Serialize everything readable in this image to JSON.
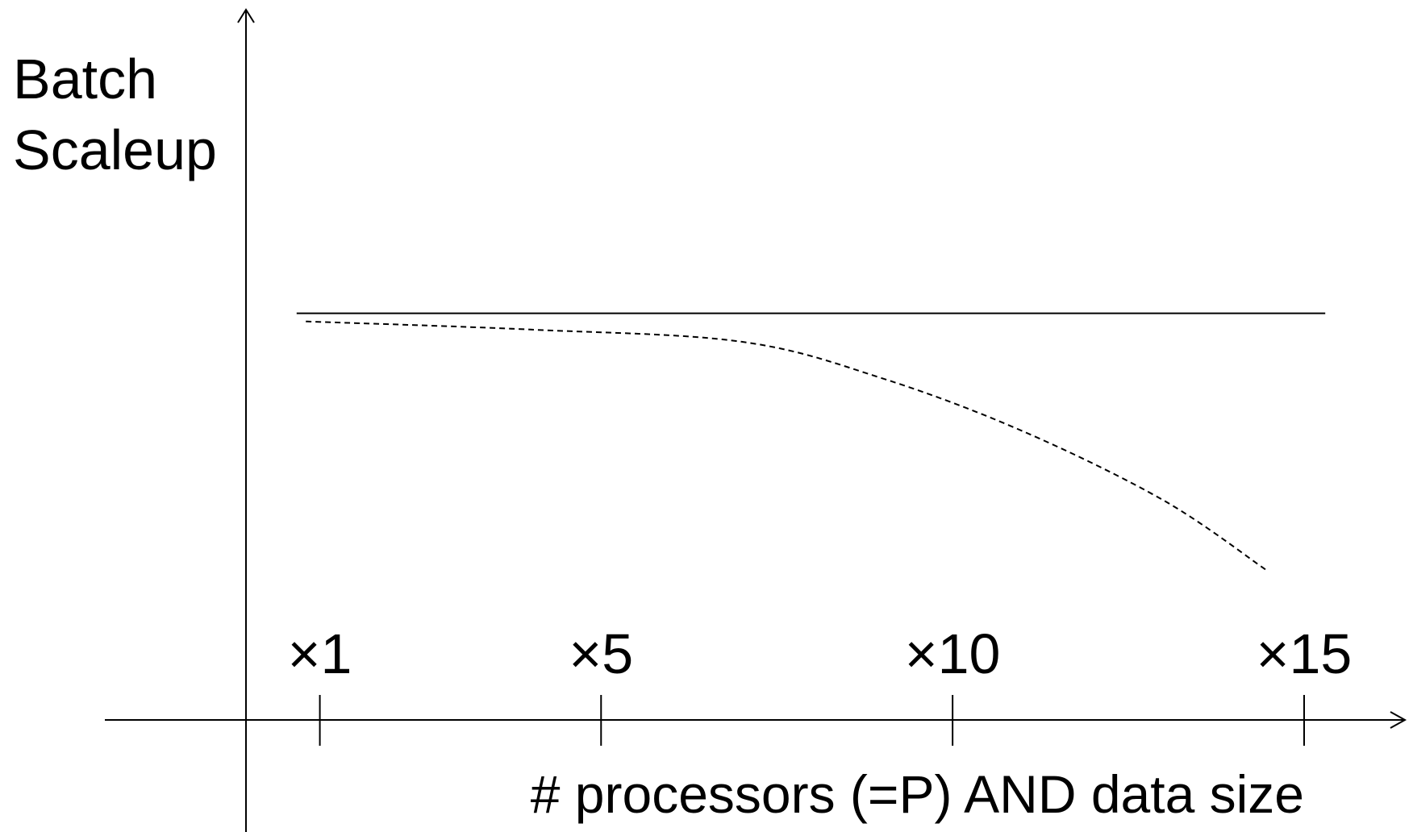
{
  "chart_data": {
    "type": "line",
    "ylabel_lines": [
      "Batch",
      "Scaleup"
    ],
    "xlabel": "# processors (=P) AND data size",
    "x_ticks": [
      {
        "value": 1,
        "label": "×1"
      },
      {
        "value": 5,
        "label": "×5"
      },
      {
        "value": 10,
        "label": "×10"
      },
      {
        "value": 15,
        "label": "×15"
      }
    ],
    "xlim": [
      0.5,
      15
    ],
    "ylim": [
      0,
      1.6
    ],
    "grid": false,
    "y_tick_labels": false,
    "series": [
      {
        "style": "solid",
        "color": "#000000",
        "points": [
          [
            0.67,
            1.0
          ],
          [
            15.3,
            1.0
          ]
        ]
      },
      {
        "style": "dashed",
        "color": "#000000",
        "points": [
          [
            0.8,
            0.98
          ],
          [
            4,
            0.96
          ],
          [
            7,
            0.93
          ],
          [
            9,
            0.84
          ],
          [
            11,
            0.71
          ],
          [
            13,
            0.54
          ],
          [
            14.45,
            0.37
          ]
        ]
      }
    ]
  }
}
